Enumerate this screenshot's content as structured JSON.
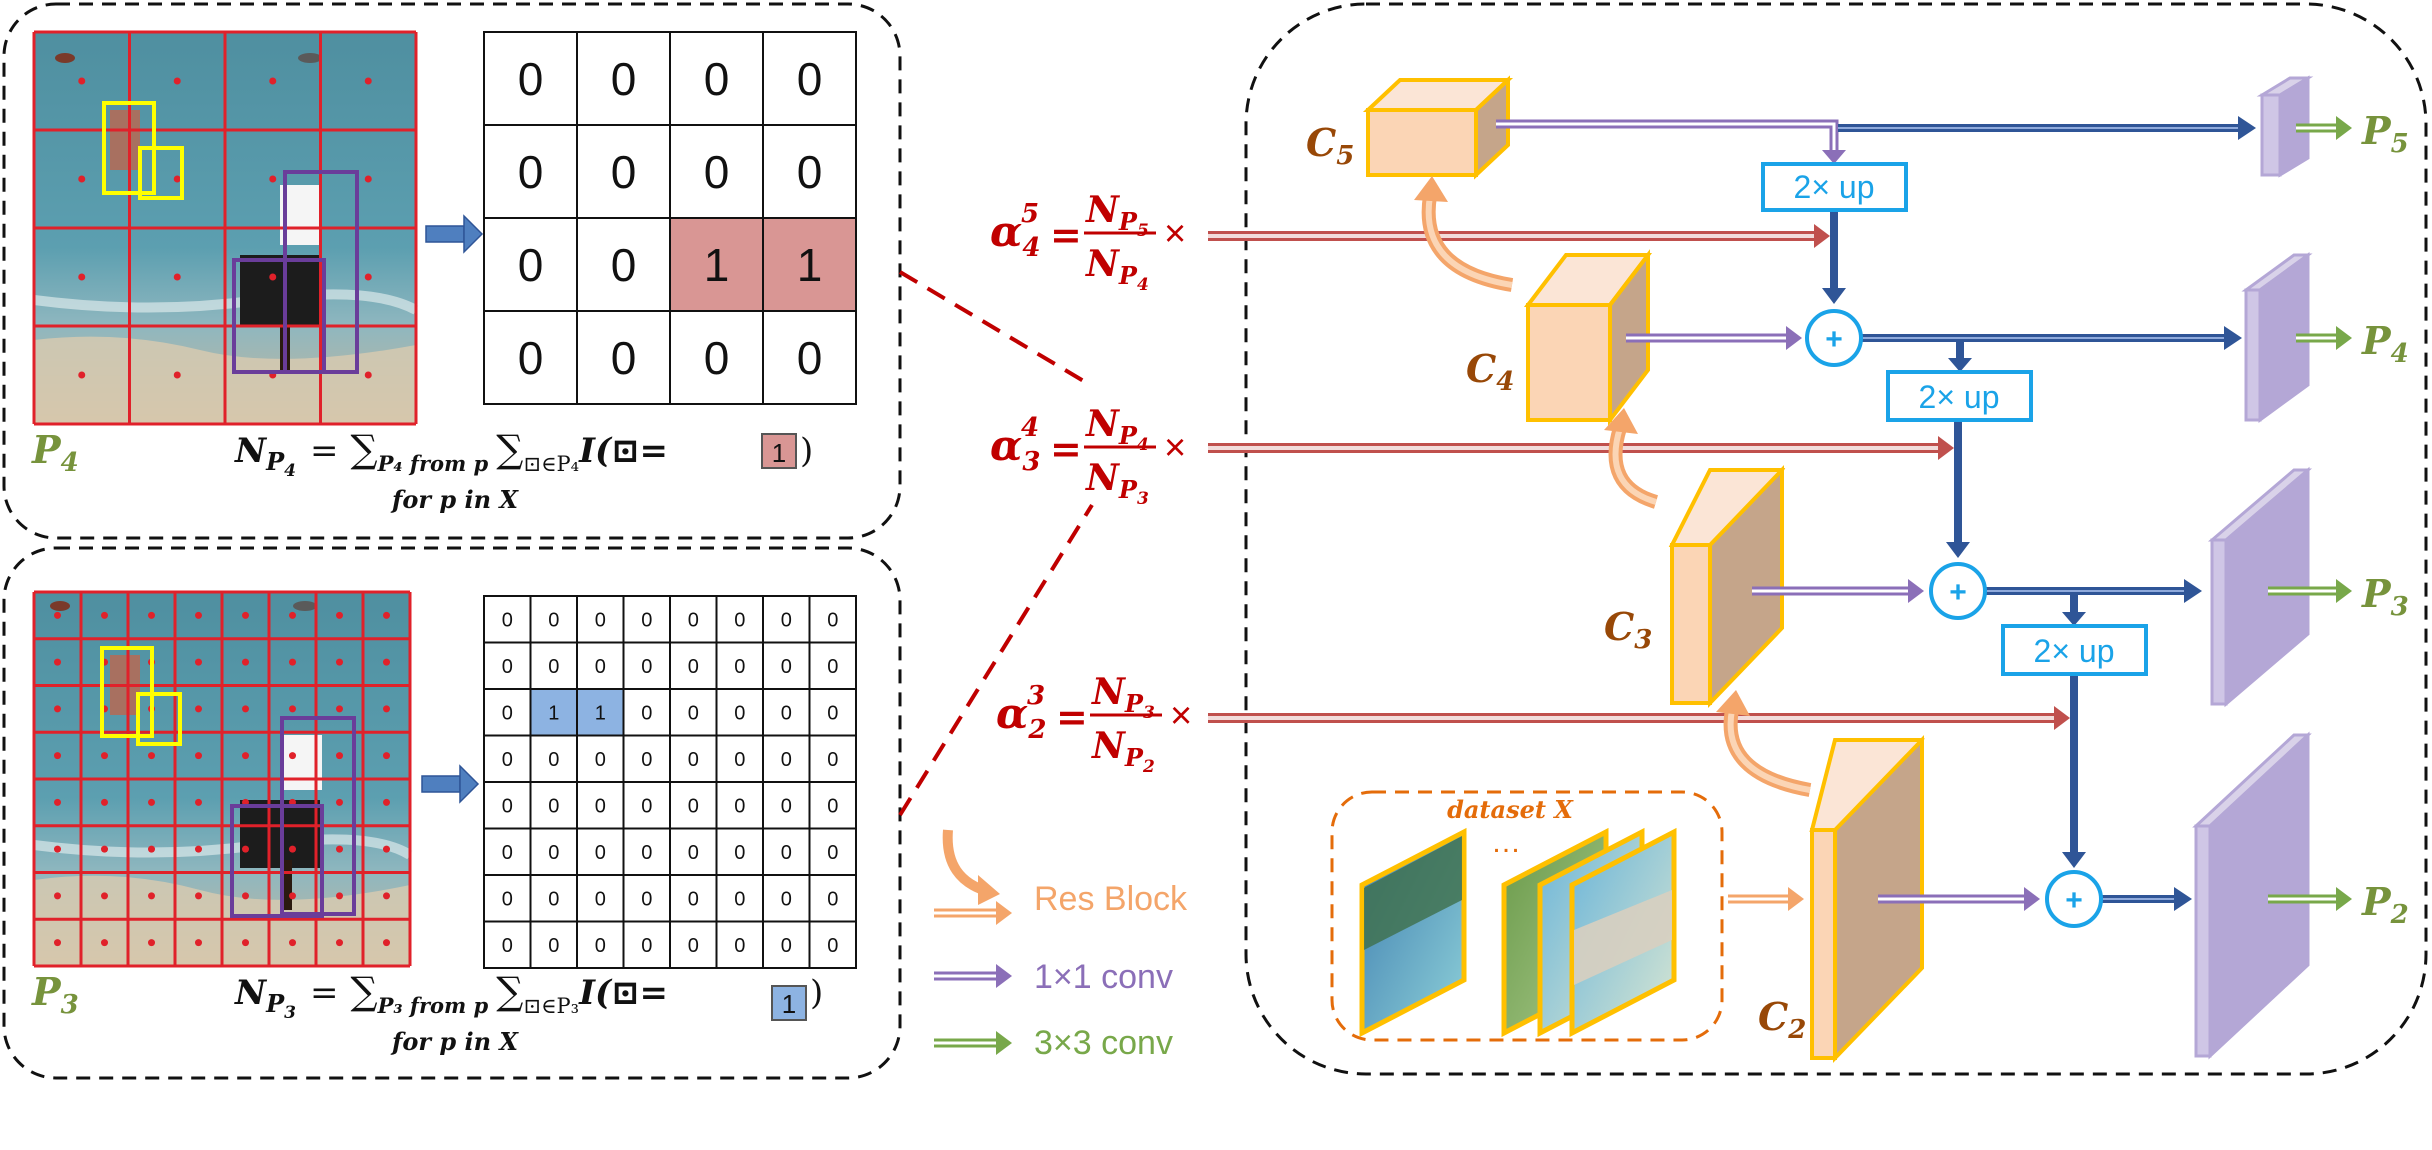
{
  "top_panel": {
    "level_label": "P",
    "level_sub": "4",
    "grid": [
      [
        0,
        0,
        0,
        0
      ],
      [
        0,
        0,
        0,
        0
      ],
      [
        0,
        0,
        1,
        1
      ],
      [
        0,
        0,
        0,
        0
      ]
    ],
    "formula_n": "N",
    "formula_p": "P",
    "formula_level": "4",
    "formula_eq": "=",
    "formula_sum1": "∑",
    "formula_sum1_sub": "P₄ from p",
    "formula_sum2": "∑",
    "formula_sum2_sub": "⊡∈P₄",
    "formula_indicator": "I(⊡=",
    "formula_box_value": "1",
    "formula_close": ")",
    "formula_under": "for p in X"
  },
  "bottom_panel": {
    "level_label": "P",
    "level_sub": "3",
    "grid": [
      [
        0,
        0,
        0,
        0,
        0,
        0,
        0,
        0
      ],
      [
        0,
        0,
        0,
        0,
        0,
        0,
        0,
        0
      ],
      [
        0,
        1,
        1,
        0,
        0,
        0,
        0,
        0
      ],
      [
        0,
        0,
        0,
        0,
        0,
        0,
        0,
        0
      ],
      [
        0,
        0,
        0,
        0,
        0,
        0,
        0,
        0
      ],
      [
        0,
        0,
        0,
        0,
        0,
        0,
        0,
        0
      ],
      [
        0,
        0,
        0,
        0,
        0,
        0,
        0,
        0
      ],
      [
        0,
        0,
        0,
        0,
        0,
        0,
        0,
        0
      ]
    ],
    "formula_n": "N",
    "formula_p": "P",
    "formula_level": "3",
    "formula_eq": "=",
    "formula_sum1": "∑",
    "formula_sum1_sub": "P₃ from p",
    "formula_sum2": "∑",
    "formula_sum2_sub": "⊡∈P₃",
    "formula_indicator": "I(⊡=",
    "formula_box_value": "1",
    "formula_close": ")",
    "formula_under": "for p in X"
  },
  "alphas": [
    {
      "alpha": "α",
      "sub": "4",
      "sup": "5",
      "eq": "=",
      "num_n": "N",
      "num_p": "P",
      "num_sub": "5",
      "den_n": "N",
      "den_p": "P",
      "den_sub": "4",
      "times": "×"
    },
    {
      "alpha": "α",
      "sub": "3",
      "sup": "4",
      "eq": "=",
      "num_n": "N",
      "num_p": "P",
      "num_sub": "4",
      "den_n": "N",
      "den_p": "P",
      "den_sub": "3",
      "times": "×"
    },
    {
      "alpha": "α",
      "sub": "2",
      "sup": "3",
      "eq": "=",
      "num_n": "N",
      "num_p": "P",
      "num_sub": "3",
      "den_n": "N",
      "den_p": "P",
      "den_sub": "2",
      "times": "×"
    }
  ],
  "network": {
    "c_labels": [
      {
        "letter": "C",
        "sub": "5"
      },
      {
        "letter": "C",
        "sub": "4"
      },
      {
        "letter": "C",
        "sub": "3"
      },
      {
        "letter": "C",
        "sub": "2"
      }
    ],
    "p_labels": [
      {
        "letter": "P",
        "sub": "5"
      },
      {
        "letter": "P",
        "sub": "4"
      },
      {
        "letter": "P",
        "sub": "3"
      },
      {
        "letter": "P",
        "sub": "2"
      }
    ],
    "up_label": "2× up",
    "plus": "+",
    "dataset_label": "dataset X",
    "dataset_ellipsis": "…"
  },
  "legend": [
    {
      "label": "Res Block",
      "color": "#f4a56a"
    },
    {
      "label": "1×1 conv",
      "color": "#8b6fb8"
    },
    {
      "label": "3×3 conv",
      "color": "#78a84a"
    }
  ],
  "colors": {
    "panel_border": "#111111",
    "grid_red": "#e0212a",
    "highlight_red": "#d99694",
    "highlight_blue": "#8db3e2",
    "dark_red_text": "#c00000",
    "p_green": "#77933c",
    "c_brown": "#984807",
    "arrow_blue": "#2f5597",
    "cyan": "#1aa3e8",
    "fpn_purple": "#b4a7d6",
    "cube_front": "#fbd5b5",
    "cube_border": "#ffc000"
  }
}
